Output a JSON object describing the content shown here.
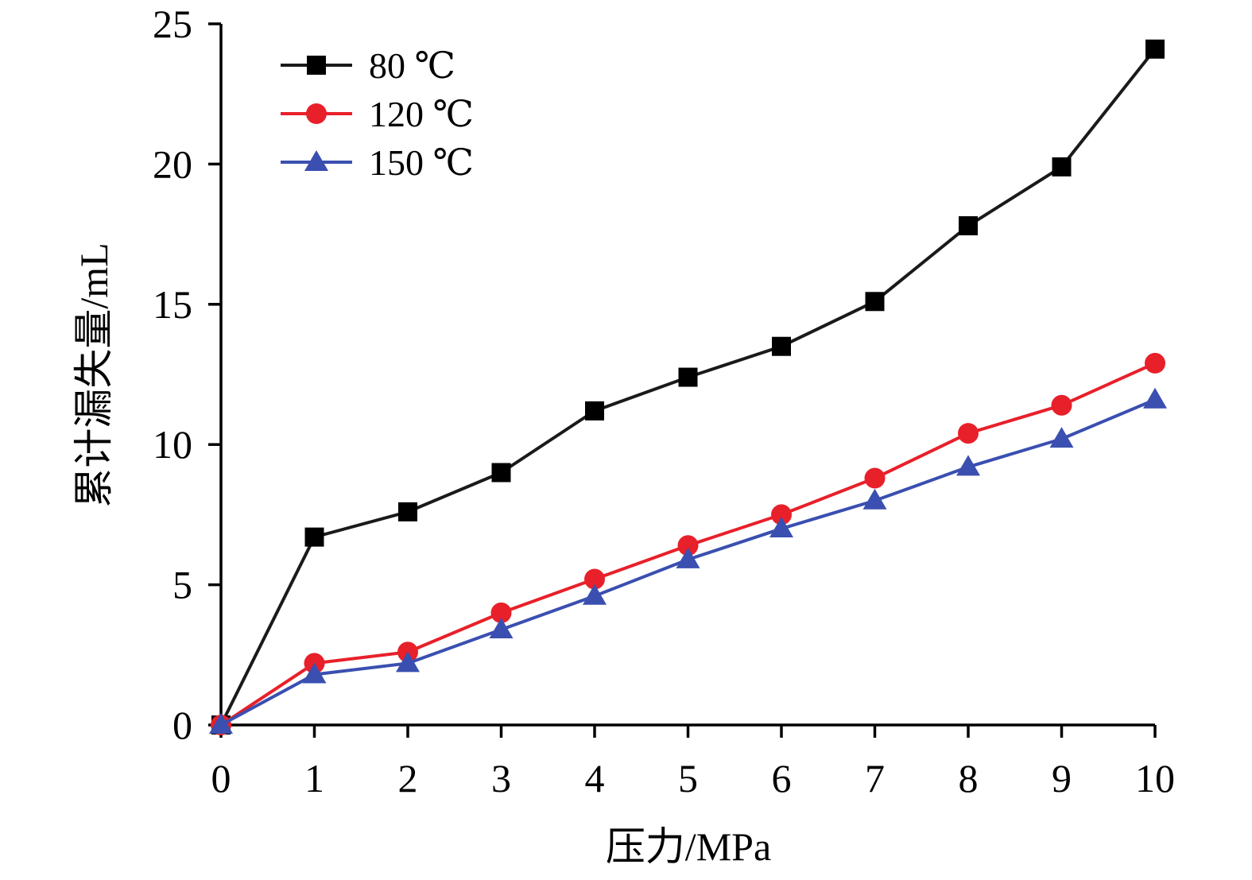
{
  "chart_data": {
    "type": "line",
    "xlabel": "压力/MPa",
    "ylabel": "累计漏失量/mL",
    "x": [
      0,
      1,
      2,
      3,
      4,
      5,
      6,
      7,
      8,
      9,
      10
    ],
    "xlim": [
      0,
      10
    ],
    "ylim": [
      0,
      25
    ],
    "x_ticks": [
      "0",
      "1",
      "2",
      "3",
      "4",
      "5",
      "6",
      "7",
      "8",
      "9",
      "10"
    ],
    "y_ticks": [
      "0",
      "5",
      "10",
      "15",
      "20",
      "25"
    ],
    "grid": false,
    "legend_position": "top-left",
    "series": [
      {
        "name": "80 ℃",
        "color": "#000000",
        "line_color": "#1a1a1a",
        "marker": "square",
        "values": [
          0,
          6.7,
          7.6,
          9.0,
          11.2,
          12.4,
          13.5,
          15.1,
          17.8,
          19.9,
          24.1
        ]
      },
      {
        "name": "120 ℃",
        "color": "#e8202a",
        "line_color": "#e8202a",
        "marker": "circle",
        "values": [
          0,
          2.2,
          2.6,
          4.0,
          5.2,
          6.4,
          7.5,
          8.8,
          10.4,
          11.4,
          12.9
        ]
      },
      {
        "name": "150 ℃",
        "color": "#3a4fb0",
        "line_color": "#3a4fb0",
        "marker": "triangle",
        "values": [
          0,
          1.8,
          2.2,
          3.4,
          4.6,
          5.9,
          7.0,
          8.0,
          9.2,
          10.2,
          11.6
        ]
      }
    ]
  }
}
